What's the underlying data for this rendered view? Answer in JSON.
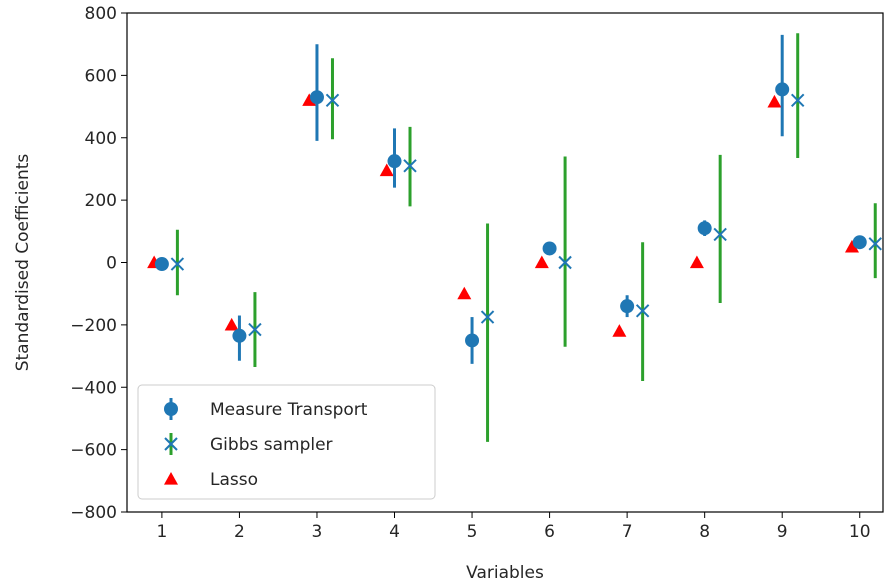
{
  "chart_data": {
    "type": "scatter",
    "title": "",
    "xlabel": "Variables",
    "ylabel": "Standardised Coefficients",
    "xlim": [
      0.55,
      10.3
    ],
    "ylim": [
      -800,
      800
    ],
    "x_ticks": [
      1,
      2,
      3,
      4,
      5,
      6,
      7,
      8,
      9,
      10
    ],
    "y_ticks": [
      -800,
      -600,
      -400,
      -200,
      0,
      200,
      400,
      600,
      800
    ],
    "y_tick_labels": [
      "−800",
      "−600",
      "−400",
      "−200",
      "0",
      "200",
      "400",
      "600",
      "800"
    ],
    "grid": false,
    "legend_position": "lower-left",
    "colors": {
      "measure_transport": "#1f77b4",
      "gibbs": "#2ca02c",
      "lasso": "#ff0000"
    },
    "series": [
      {
        "name": "Measure Transport",
        "marker": "circle",
        "offset": 0,
        "values": [
          -5,
          -235,
          530,
          325,
          -250,
          45,
          -140,
          110,
          555,
          65
        ],
        "lower": [
          -18,
          -315,
          390,
          240,
          -325,
          25,
          -175,
          85,
          405,
          55
        ],
        "upper": [
          8,
          -170,
          700,
          430,
          -175,
          60,
          -105,
          135,
          730,
          75
        ]
      },
      {
        "name": "Gibbs sampler",
        "marker": "x",
        "offset": 0.2,
        "values": [
          -5,
          -215,
          520,
          310,
          -175,
          0,
          -155,
          90,
          520,
          60
        ],
        "lower": [
          -105,
          -335,
          395,
          180,
          -575,
          -270,
          -380,
          -130,
          335,
          -50
        ],
        "upper": [
          105,
          -95,
          655,
          435,
          125,
          340,
          65,
          345,
          735,
          190
        ]
      },
      {
        "name": "Lasso",
        "marker": "triangle",
        "offset": -0.1,
        "values": [
          0,
          -200,
          520,
          295,
          -100,
          0,
          -220,
          0,
          515,
          50
        ]
      }
    ]
  }
}
